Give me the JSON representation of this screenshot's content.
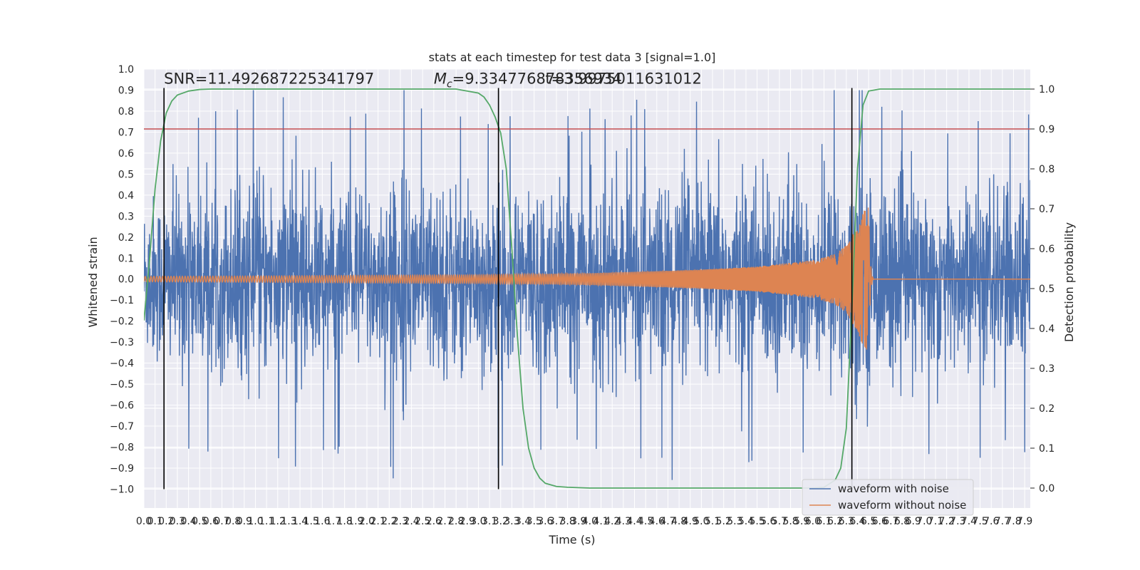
{
  "chart_data": {
    "type": "line",
    "title": "stats at each timestep for test data 3 [signal=1.0]",
    "xlabel": "Time (s)",
    "ylabel": "Whitened strain",
    "y2label": "Detection probability",
    "xlim": [
      0.0,
      7.95
    ],
    "ylim": [
      -1.09,
      1.0
    ],
    "y2lim": [
      -0.05,
      1.05
    ],
    "x_ticks": [
      0.0,
      0.1,
      0.2,
      0.3,
      0.4,
      0.5,
      0.6,
      0.7,
      0.8,
      0.9,
      1.0,
      1.1,
      1.2,
      1.3,
      1.4,
      1.5,
      1.6,
      1.7,
      1.8,
      1.9,
      2.0,
      2.1,
      2.2,
      2.3,
      2.4,
      2.5,
      2.6,
      2.7,
      2.8,
      2.9,
      3.0,
      3.1,
      3.2,
      3.3,
      3.4,
      3.5,
      3.6,
      3.7,
      3.8,
      3.9,
      4.0,
      4.1,
      4.2,
      4.3,
      4.4,
      4.5,
      4.6,
      4.7,
      4.8,
      4.9,
      5.0,
      5.1,
      5.2,
      5.3,
      5.4,
      5.5,
      5.6,
      5.7,
      5.8,
      5.9,
      6.0,
      6.1,
      6.2,
      6.3,
      6.4,
      6.5,
      6.6,
      6.7,
      6.8,
      6.9,
      7.0,
      7.1,
      7.2,
      7.3,
      7.4,
      7.5,
      7.6,
      7.7,
      7.8,
      7.9
    ],
    "y_ticks": [
      1.0,
      0.9,
      0.8,
      0.7,
      0.6,
      0.5,
      0.4,
      0.3,
      0.2,
      0.1,
      0.0,
      -0.1,
      -0.2,
      -0.3,
      -0.4,
      -0.5,
      -0.6,
      -0.7,
      -0.8,
      -0.9,
      -1.0
    ],
    "y_tick_labels": [
      "1.0",
      "0.9",
      "0.8",
      "0.7",
      "0.6",
      "0.5",
      "0.4",
      "0.3",
      "0.2",
      "0.1",
      "0.0",
      "−0.1",
      "−0.2",
      "−0.3",
      "−0.4",
      "−0.5",
      "−0.6",
      "−0.7",
      "−0.8",
      "−0.9",
      "−1.0"
    ],
    "y2_ticks": [
      1.0,
      0.9,
      0.8,
      0.7,
      0.6,
      0.5,
      0.4,
      0.3,
      0.2,
      0.1,
      0.0
    ],
    "y2_tick_labels": [
      "1.0",
      "0.9",
      "0.8",
      "0.7",
      "0.6",
      "0.5",
      "0.4",
      "0.3",
      "0.2",
      "0.1",
      "0.0"
    ],
    "grid": true,
    "legend_position": "bottom-right",
    "series": [
      {
        "name": "waveform with noise",
        "color": "#4c72b0",
        "envelope": {
          "x": [
            0.0,
            0.3,
            0.8,
            1.2,
            1.6,
            2.0,
            2.4,
            2.8,
            3.2,
            3.6,
            4.0,
            4.4,
            4.8,
            5.2,
            5.6,
            6.0,
            6.4,
            6.6,
            7.0,
            7.4,
            7.95
          ],
          "amplitude": [
            0.45,
            0.5,
            0.5,
            0.55,
            0.5,
            0.5,
            0.55,
            0.5,
            0.5,
            0.5,
            0.5,
            0.5,
            0.55,
            0.5,
            0.55,
            0.55,
            0.6,
            0.5,
            0.5,
            0.5,
            0.5
          ]
        }
      },
      {
        "name": "waveform without noise",
        "color": "#dd8452",
        "envelope": {
          "x": [
            0.0,
            1.0,
            2.0,
            3.0,
            4.0,
            5.0,
            5.5,
            6.0,
            6.2,
            6.3,
            6.4,
            6.45,
            6.5,
            6.55,
            7.95
          ],
          "amplitude": [
            0.013,
            0.015,
            0.018,
            0.02,
            0.028,
            0.045,
            0.06,
            0.09,
            0.12,
            0.16,
            0.25,
            0.32,
            0.35,
            0.005,
            0.005
          ]
        },
        "peak_time": 6.5
      },
      {
        "name": "detection probability",
        "color": "#55a868",
        "axis": "right",
        "x": [
          0.0,
          0.05,
          0.1,
          0.15,
          0.2,
          0.25,
          0.3,
          0.4,
          0.5,
          0.6,
          0.7,
          1.5,
          2.5,
          2.8,
          3.0,
          3.05,
          3.1,
          3.15,
          3.2,
          3.25,
          3.3,
          3.35,
          3.4,
          3.45,
          3.5,
          3.55,
          3.6,
          3.7,
          3.8,
          4.0,
          5.0,
          6.0,
          6.1,
          6.2,
          6.25,
          6.3,
          6.35,
          6.4,
          6.45,
          6.5,
          6.6,
          6.7,
          7.95
        ],
        "y": [
          0.42,
          0.57,
          0.75,
          0.87,
          0.94,
          0.97,
          0.985,
          0.995,
          0.999,
          1.0,
          1.0,
          1.0,
          1.0,
          1.0,
          0.99,
          0.98,
          0.96,
          0.93,
          0.89,
          0.8,
          0.6,
          0.38,
          0.2,
          0.1,
          0.05,
          0.025,
          0.012,
          0.004,
          0.002,
          0.0,
          0.0,
          0.0,
          0.002,
          0.02,
          0.05,
          0.15,
          0.45,
          0.8,
          0.96,
          0.995,
          1.0,
          1.0,
          1.0
        ]
      }
    ],
    "threshold": {
      "axis": "right",
      "value": 0.9,
      "color": "#c44e52"
    },
    "vlines": [
      {
        "x": 0.18,
        "ymin": -1.0,
        "ymax": 0.91
      },
      {
        "x": 3.18,
        "ymin": -1.0,
        "ymax": 0.91
      },
      {
        "x": 6.35,
        "ymin": -1.0,
        "ymax": 0.91
      }
    ],
    "annotations": [
      {
        "text": "SNR=11.492687225341797",
        "x": 0.18,
        "y": 0.93
      },
      {
        "text_prefix": "M",
        "text_sub": "c",
        "text_suffix": "=9.334776878356934",
        "x": 2.6,
        "y": 0.93
      },
      {
        "text": "t=3.9975011631012",
        "x": 3.6,
        "y": 0.93
      }
    ]
  }
}
